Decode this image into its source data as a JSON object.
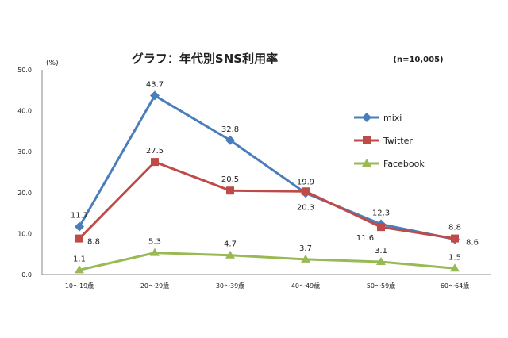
{
  "chart_data": {
    "type": "line",
    "title": "グラフ：年代別SNS利用率",
    "subtitle": "(n=10,005)",
    "ylabel": "(%)",
    "xlabel": "",
    "categories": [
      "10～19歳",
      "20～29歳",
      "30～39歳",
      "40～49歳",
      "50～59歳",
      "60～64歳"
    ],
    "ylim": [
      0,
      50
    ],
    "yticks": [
      "0.0",
      "10.0",
      "20.0",
      "30.0",
      "40.0",
      "50.0"
    ],
    "grid": false,
    "legend_position": "right",
    "series": [
      {
        "name": "mixi",
        "color": "#4a7ebb",
        "marker": "diamond",
        "values": [
          11.7,
          43.7,
          32.8,
          19.9,
          12.3,
          8.6
        ],
        "labels": [
          "11.7",
          "43.7",
          "32.8",
          "19.9",
          "12.3",
          "8.6"
        ]
      },
      {
        "name": "Twitter",
        "color": "#be4b48",
        "marker": "square",
        "values": [
          8.8,
          27.5,
          20.5,
          20.3,
          11.6,
          8.8
        ],
        "labels": [
          "8.8",
          "27.5",
          "20.5",
          "20.3",
          "11.6",
          "8.8"
        ]
      },
      {
        "name": "Facebook",
        "color": "#98b954",
        "marker": "triangle",
        "values": [
          1.1,
          5.3,
          4.7,
          3.7,
          3.1,
          1.5
        ],
        "labels": [
          "1.1",
          "5.3",
          "4.7",
          "3.7",
          "3.1",
          "1.5"
        ]
      }
    ]
  }
}
